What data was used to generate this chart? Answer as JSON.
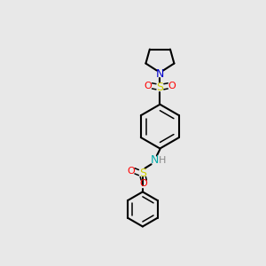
{
  "background_color": "#e8e8e8",
  "atom_colors": {
    "C": "#000000",
    "N_top": "#0000cc",
    "N_bottom": "#00aaaa",
    "S": "#cccc00",
    "O": "#ff0000",
    "H": "#888888"
  },
  "bond_color": "#000000",
  "figsize": [
    3.0,
    3.0
  ],
  "dpi": 100
}
